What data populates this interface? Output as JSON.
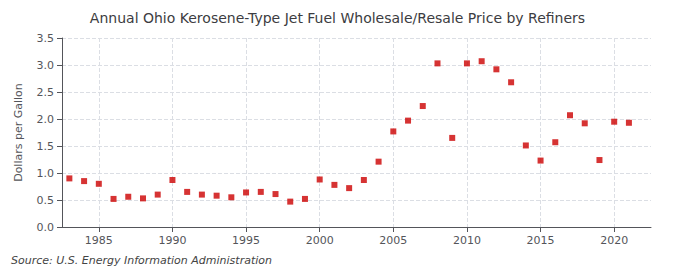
{
  "chart_data": {
    "type": "scatter",
    "title": "Annual Ohio Kerosene-Type Jet Fuel Wholesale/Resale Price by Refiners",
    "ylabel": "Dollars per Gallon",
    "annotations": [
      "Source: U.S. Energy Information Administration"
    ],
    "x": [
      1983,
      1984,
      1985,
      1986,
      1987,
      1988,
      1989,
      1990,
      1991,
      1992,
      1993,
      1994,
      1995,
      1996,
      1997,
      1998,
      1999,
      2000,
      2001,
      2002,
      2003,
      2004,
      2005,
      2006,
      2007,
      2008,
      2009,
      2010,
      2011,
      2012,
      2013,
      2014,
      2015,
      2016,
      2017,
      2018,
      2019,
      2020,
      2021
    ],
    "values": [
      0.9,
      0.85,
      0.8,
      0.52,
      0.56,
      0.53,
      0.6,
      0.87,
      0.65,
      0.6,
      0.58,
      0.55,
      0.64,
      0.65,
      0.61,
      0.47,
      0.52,
      0.88,
      0.78,
      0.72,
      0.87,
      1.21,
      1.77,
      1.97,
      2.24,
      3.03,
      1.65,
      3.03,
      3.07,
      2.92,
      2.68,
      1.51,
      1.23,
      1.57,
      2.07,
      1.92,
      1.24,
      1.95,
      1.93
    ],
    "color": "#cc0000",
    "marker": "square",
    "xlim": [
      1982.5,
      2022.5
    ],
    "xticks": [
      1985,
      1990,
      1995,
      2000,
      2005,
      2010,
      2015,
      2020
    ],
    "ylim": [
      0.0,
      3.5
    ],
    "yticks": [
      {
        "value": 0,
        "label": "0.0"
      },
      0.5,
      {
        "value": 1,
        "label": "1.0"
      },
      1.5,
      {
        "value": 2,
        "label": "2.0"
      },
      2.5,
      {
        "value": 3,
        "label": "3.0"
      },
      3.5
    ],
    "grid": true
  }
}
